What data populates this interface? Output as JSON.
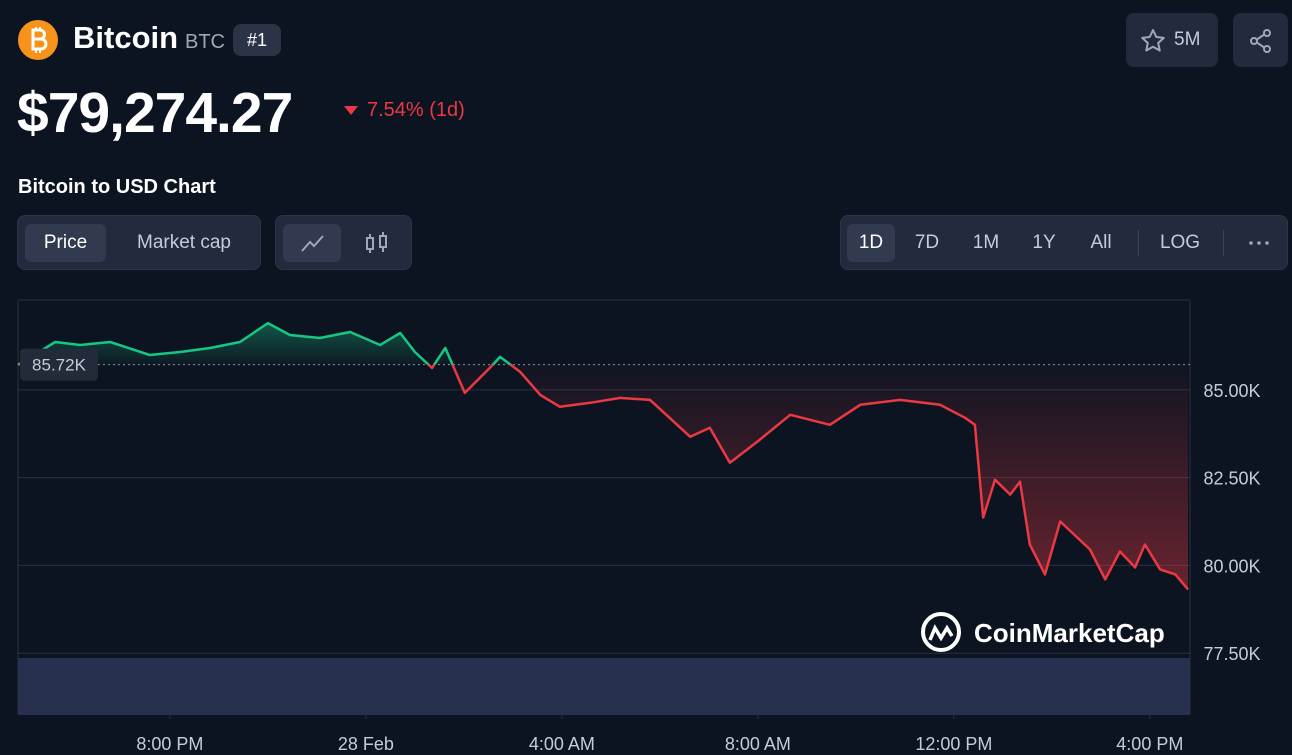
{
  "header": {
    "name": "Bitcoin",
    "symbol": "BTC",
    "rank": "#1",
    "watchlist_count": "5M"
  },
  "price": {
    "value": "$79,274.27",
    "change": "7.54% (1d)"
  },
  "chart_title": "Bitcoin to USD Chart",
  "tabs": {
    "metric": [
      "Price",
      "Market cap"
    ],
    "ranges": [
      "1D",
      "7D",
      "1M",
      "1Y",
      "All",
      "LOG"
    ]
  },
  "watermark": "CoinMarketCap",
  "chart_data": {
    "type": "line",
    "up_color": "#16c784",
    "down_color": "#ea3943",
    "baseline": {
      "value": 85720,
      "label": "85.72K"
    },
    "x": [
      16.9,
      17.66,
      18.17,
      18.78,
      19.59,
      20.21,
      20.82,
      21.43,
      22.0,
      22.45,
      23.06,
      23.68,
      24.29,
      24.7,
      25.0,
      25.35,
      25.62,
      26.02,
      26.53,
      26.74,
      27.15,
      27.56,
      27.96,
      28.58,
      29.19,
      29.8,
      30.62,
      31.02,
      31.43,
      32.04,
      32.66,
      33.47,
      34.09,
      34.9,
      35.72,
      36.23,
      36.43,
      36.6,
      36.84,
      37.15,
      37.35,
      37.55,
      37.86,
      38.17,
      38.78,
      39.09,
      39.39,
      39.7,
      39.9,
      40.21,
      40.52,
      40.78
    ],
    "values": [
      85710,
      86364,
      86278,
      86364,
      85994,
      86080,
      86193,
      86364,
      86903,
      86563,
      86477,
      86648,
      86278,
      86619,
      86080,
      85625,
      86193,
      84915,
      85625,
      85938,
      85511,
      84858,
      84517,
      84631,
      84773,
      84716,
      83665,
      83920,
      82926,
      83580,
      84290,
      84006,
      84574,
      84716,
      84574,
      84205,
      84006,
      81364,
      82443,
      82017,
      82386,
      80597,
      79744,
      81250,
      80455,
      79602,
      80398,
      79943,
      80597,
      79886,
      79744,
      79318
    ],
    "xlim": [
      16.9,
      40.82
    ],
    "xticks": [
      {
        "value": 20,
        "label": "8:00 PM"
      },
      {
        "value": 24,
        "label": "28 Feb"
      },
      {
        "value": 28,
        "label": "4:00 AM"
      },
      {
        "value": 32,
        "label": "8:00 AM"
      },
      {
        "value": 36,
        "label": "12:00 PM"
      },
      {
        "value": 40,
        "label": "4:00 PM"
      }
    ],
    "ylim": [
      75740,
      87560
    ],
    "yticks": [
      {
        "value": 77500,
        "label": "77.50K"
      },
      {
        "value": 80000,
        "label": "80.00K"
      },
      {
        "value": 82500,
        "label": "82.50K"
      },
      {
        "value": 85000,
        "label": "85.00K"
      }
    ],
    "grid": true
  }
}
